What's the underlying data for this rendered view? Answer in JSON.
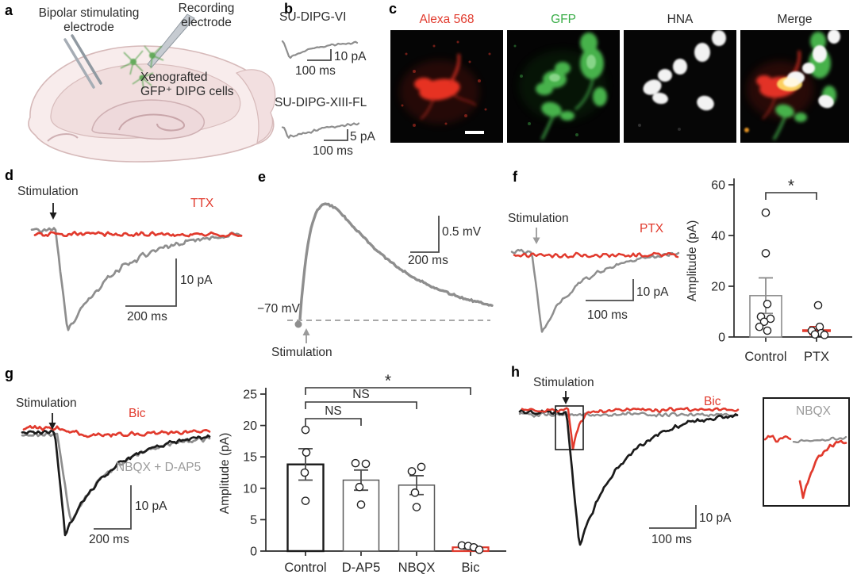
{
  "colors": {
    "accent_red": "#e13a2d",
    "trace_gray": "#8e8e8e",
    "trace_black": "#1b1b1b",
    "gfp_green": "#3bae49"
  },
  "panels": {
    "a": {
      "letter": "a",
      "stim_electrode_line1": "Bipolar stimulating",
      "stim_electrode_line2": "electrode",
      "rec_electrode_line1": "Recording",
      "rec_electrode_line2": "electrode",
      "cells_line1": "Xenografted",
      "cells_line2": "GFP⁺ DIPG cells"
    },
    "b": {
      "letter": "b",
      "trace1_name": "SU-DIPG-VI",
      "trace1_scale_v": "10 pA",
      "trace1_scale_h": "100 ms",
      "trace2_name": "SU-DIPG-XIII-FL",
      "trace2_scale_v": "5 pA",
      "trace2_scale_h": "100 ms"
    },
    "c": {
      "letter": "c",
      "channel1": "Alexa 568",
      "channel2": "GFP",
      "channel3": "HNA",
      "channel4": "Merge"
    },
    "d": {
      "letter": "d",
      "stim": "Stimulation",
      "drug": "TTX",
      "scale_v": "10 pA",
      "scale_h": "200 ms"
    },
    "e": {
      "letter": "e",
      "stim": "Stimulation",
      "vm": "−70 mV",
      "scale_v": "0.5 mV",
      "scale_h": "200 ms"
    },
    "f": {
      "letter": "f",
      "stim": "Stimulation",
      "drug": "PTX",
      "scale_v": "10 pA",
      "scale_h": "100 ms"
    },
    "g": {
      "letter": "g",
      "stim": "Stimulation",
      "drug": "Bic",
      "drug2": "NBQX + D-AP5",
      "scale_v": "10 pA",
      "scale_h": "200 ms"
    },
    "h": {
      "letter": "h",
      "stim": "Stimulation",
      "drug": "Bic",
      "inset_label": "NBQX",
      "scale_v": "10 pA",
      "scale_h": "100 ms"
    }
  },
  "chart_data": [
    {
      "id": "f_bar",
      "type": "bar",
      "title": "",
      "xlabel": "",
      "ylabel": "Amplitude (pA)",
      "ylim": [
        0,
        60
      ],
      "yticks": [
        0,
        20,
        40,
        60
      ],
      "grid": false,
      "legend_position": "none",
      "categories": [
        "Control",
        "PTX"
      ],
      "values": [
        16.3,
        2.5
      ],
      "errors": [
        7,
        1.6
      ],
      "points": [
        [
          49,
          33,
          13,
          8,
          7.2,
          6,
          4,
          2.5
        ],
        [
          12.5,
          4,
          2.5,
          1.5,
          1,
          0.8
        ]
      ],
      "bar_styles": [
        {
          "stroke": "#8c8c8c",
          "width": 1.6,
          "type": "bar"
        },
        {
          "stroke": "#e13a2d",
          "width": 2.2,
          "type": "mean-line"
        }
      ],
      "significance": [
        {
          "from": 0,
          "to": 1,
          "label": "*",
          "row": 0
        }
      ]
    },
    {
      "id": "g_bar",
      "type": "bar",
      "title": "",
      "xlabel": "",
      "ylabel": "Amplitude (pA)",
      "ylim": [
        0,
        25
      ],
      "yticks": [
        0,
        5,
        10,
        15,
        20,
        25
      ],
      "grid": false,
      "legend_position": "none",
      "categories": [
        "Control",
        "D-AP5",
        "NBQX",
        "Bic"
      ],
      "values": [
        13.8,
        11.3,
        10.5,
        0.6
      ],
      "errors": [
        2.5,
        1.6,
        1.5,
        0.3
      ],
      "points": [
        [
          19.3,
          15.7,
          12.5,
          8
        ],
        [
          14,
          13.9,
          10.2,
          7.4
        ],
        [
          13.4,
          12.7,
          9.3,
          7
        ],
        [
          0.9,
          0.8,
          0.6,
          0.2
        ]
      ],
      "bar_styles": [
        {
          "stroke": "#1a1a1a",
          "width": 2.4,
          "type": "bar"
        },
        {
          "stroke": "#5a5a5a",
          "width": 1.5,
          "type": "bar"
        },
        {
          "stroke": "#5a5a5a",
          "width": 1.5,
          "type": "bar"
        },
        {
          "stroke": "#e13a2d",
          "width": 2.2,
          "type": "bar"
        }
      ],
      "significance": [
        {
          "from": 0,
          "to": 1,
          "label": "NS",
          "row": 0
        },
        {
          "from": 0,
          "to": 2,
          "label": "NS",
          "row": 1
        },
        {
          "from": 0,
          "to": 3,
          "label": "*",
          "row": 2
        }
      ]
    }
  ]
}
